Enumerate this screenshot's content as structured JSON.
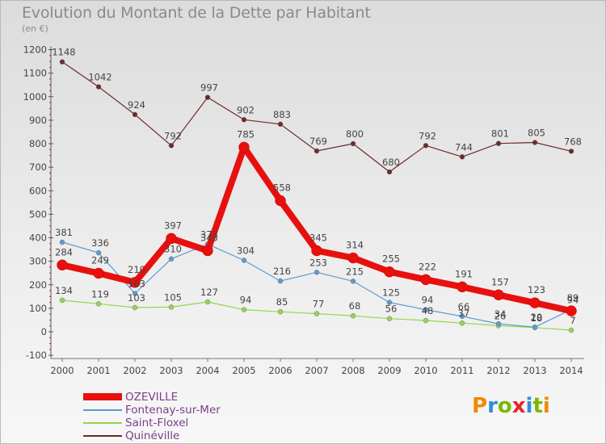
{
  "title": "Evolution du Montant de la Dette par Habitant",
  "subtitle": "(en €)",
  "logo": {
    "letters": [
      "P",
      "r",
      "o",
      "x",
      "i",
      "t",
      "i"
    ],
    "colors": [
      "#f08a00",
      "#2f8fd6",
      "#7ab800",
      "#e8242b",
      "#2f8fd6",
      "#7ab800",
      "#f08a00"
    ]
  },
  "chart_data": {
    "type": "line",
    "x": [
      "2000",
      "2001",
      "2002",
      "2003",
      "2004",
      "2005",
      "2006",
      "2007",
      "2008",
      "2009",
      "2010",
      "2011",
      "2012",
      "2013",
      "2014"
    ],
    "ylim": [
      -100,
      1200
    ],
    "yticks": [
      -100,
      0,
      100,
      200,
      300,
      400,
      500,
      600,
      700,
      800,
      900,
      1000,
      1100,
      1200
    ],
    "grid": false,
    "legend_position": "bottom-left",
    "series": [
      {
        "name": "OZEVILLE",
        "color": "#e8100f",
        "values": [
          284,
          249,
          210,
          397,
          345,
          785,
          558,
          345,
          314,
          255,
          222,
          191,
          157,
          123,
          89
        ]
      },
      {
        "name": "Fontenay-sur-Mer",
        "color": "#5b9bd1",
        "values": [
          381,
          336,
          163,
          310,
          373,
          304,
          216,
          253,
          215,
          125,
          94,
          66,
          34,
          20,
          94
        ]
      },
      {
        "name": "Saint-Floxel",
        "color": "#93d64f",
        "values": [
          134,
          119,
          103,
          105,
          127,
          94,
          85,
          77,
          68,
          56,
          48,
          37,
          26,
          18,
          7
        ]
      },
      {
        "name": "Quinéville",
        "color": "#6b2a2a",
        "values": [
          1148,
          1042,
          924,
          792,
          997,
          902,
          883,
          769,
          800,
          680,
          792,
          744,
          801,
          805,
          768
        ]
      }
    ]
  }
}
